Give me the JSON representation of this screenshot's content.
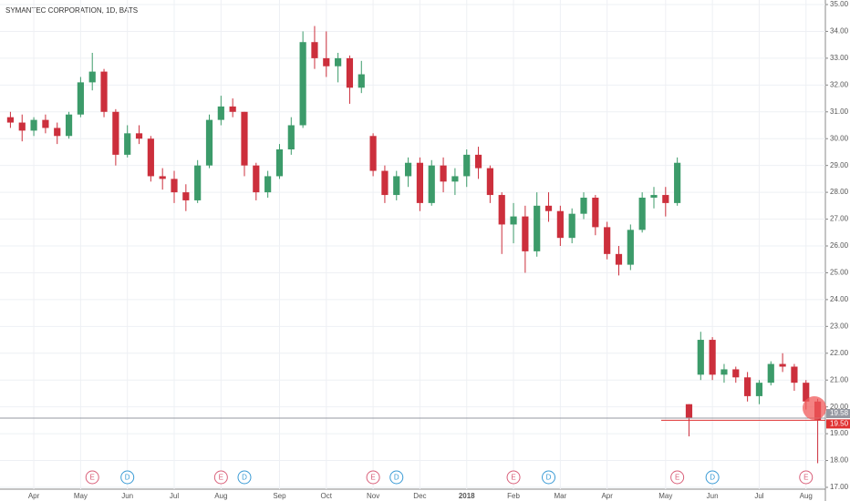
{
  "chart_data": {
    "type": "candlestick",
    "title": "SYMANTEC CORPORATION, 1D, BATS",
    "categories": [
      null,
      null,
      "Apr",
      null,
      null,
      null,
      "May",
      null,
      null,
      null,
      "Jun",
      null,
      null,
      null,
      "Jul",
      null,
      null,
      null,
      "Aug",
      null,
      null,
      null,
      null,
      "Sep",
      null,
      null,
      null,
      "Oct",
      null,
      null,
      null,
      "Nov",
      null,
      null,
      null,
      "Dec",
      null,
      null,
      null,
      "2018",
      null,
      null,
      null,
      "Feb",
      null,
      null,
      null,
      "Mar",
      null,
      null,
      null,
      "Apr",
      null,
      null,
      null,
      null,
      "May",
      null,
      null,
      null,
      "Jun",
      null,
      null,
      null,
      "Jul",
      null,
      null,
      null,
      "Aug",
      null
    ],
    "open": [
      30.8,
      30.6,
      30.3,
      30.7,
      30.4,
      30.1,
      30.9,
      32.1,
      32.5,
      31.0,
      29.4,
      30.2,
      30.0,
      28.6,
      28.5,
      28.0,
      27.7,
      29.0,
      30.7,
      31.2,
      31.0,
      29.0,
      28.0,
      28.6,
      29.6,
      30.5,
      33.6,
      33.0,
      32.7,
      33.0,
      31.9,
      30.1,
      28.8,
      27.9,
      28.6,
      29.1,
      27.6,
      29.0,
      28.4,
      28.6,
      29.4,
      28.9,
      27.9,
      26.8,
      27.1,
      25.8,
      27.5,
      27.3,
      26.3,
      27.2,
      27.8,
      26.7,
      25.7,
      25.3,
      26.6,
      27.8,
      27.9,
      27.6,
      20.1,
      21.2,
      22.5,
      21.2,
      21.4,
      21.1,
      20.4,
      20.9,
      21.6,
      21.5,
      20.9,
      20.2
    ],
    "high": [
      31.0,
      30.9,
      30.8,
      30.9,
      30.6,
      31.0,
      32.3,
      33.2,
      32.6,
      31.1,
      30.5,
      30.5,
      30.1,
      28.9,
      28.8,
      28.3,
      29.2,
      30.9,
      31.6,
      31.5,
      31.0,
      29.1,
      28.8,
      29.8,
      30.8,
      34.0,
      34.2,
      34.0,
      33.2,
      33.1,
      32.9,
      30.2,
      29.0,
      28.8,
      29.3,
      29.3,
      29.2,
      29.3,
      28.9,
      29.6,
      29.7,
      29.0,
      28.0,
      27.6,
      27.5,
      28.0,
      28.0,
      27.5,
      27.4,
      28.0,
      27.9,
      26.9,
      26.0,
      26.8,
      28.0,
      28.2,
      28.2,
      29.3,
      20.1,
      22.8,
      22.6,
      21.6,
      21.5,
      21.3,
      21.0,
      21.7,
      22.0,
      21.6,
      21.0,
      20.3
    ],
    "low": [
      30.4,
      29.9,
      30.1,
      30.2,
      29.8,
      30.0,
      30.8,
      31.8,
      30.8,
      29.0,
      29.3,
      29.8,
      28.4,
      28.1,
      27.6,
      27.3,
      27.6,
      28.9,
      30.5,
      30.8,
      28.6,
      27.7,
      27.8,
      28.5,
      29.4,
      30.4,
      32.6,
      32.3,
      32.1,
      31.3,
      31.7,
      28.6,
      27.6,
      27.7,
      28.2,
      27.3,
      27.5,
      28.0,
      27.9,
      28.2,
      28.5,
      27.6,
      25.7,
      26.1,
      25.0,
      25.6,
      26.9,
      26.0,
      26.1,
      27.0,
      26.4,
      25.5,
      24.9,
      25.1,
      26.5,
      27.4,
      27.1,
      27.5,
      18.9,
      21.0,
      21.0,
      20.9,
      20.9,
      20.2,
      20.1,
      20.8,
      21.3,
      20.6,
      19.9,
      17.9
    ],
    "close": [
      30.6,
      30.3,
      30.7,
      30.4,
      30.1,
      30.9,
      32.1,
      32.5,
      31.0,
      29.4,
      30.2,
      30.0,
      28.6,
      28.5,
      28.0,
      27.7,
      29.0,
      30.7,
      31.2,
      31.0,
      29.0,
      28.0,
      28.6,
      29.6,
      30.5,
      33.6,
      33.0,
      32.7,
      33.0,
      31.9,
      32.4,
      28.8,
      27.9,
      28.6,
      29.1,
      27.6,
      29.0,
      28.4,
      28.6,
      29.4,
      28.9,
      27.9,
      26.8,
      27.1,
      25.8,
      27.5,
      27.3,
      26.3,
      27.2,
      27.8,
      26.7,
      25.7,
      25.3,
      26.6,
      27.8,
      27.9,
      27.6,
      29.1,
      19.6,
      22.5,
      21.2,
      21.4,
      21.1,
      20.4,
      20.9,
      21.6,
      21.5,
      20.9,
      20.2,
      19.5
    ],
    "events": [
      null,
      null,
      null,
      null,
      null,
      null,
      null,
      "E",
      null,
      null,
      "D",
      null,
      null,
      null,
      null,
      null,
      null,
      null,
      "E",
      null,
      "D",
      null,
      null,
      null,
      null,
      null,
      null,
      null,
      null,
      null,
      null,
      "E",
      null,
      "D",
      null,
      null,
      null,
      null,
      null,
      null,
      null,
      null,
      null,
      "E",
      null,
      null,
      "D",
      null,
      null,
      null,
      null,
      null,
      null,
      null,
      null,
      null,
      null,
      "E",
      null,
      null,
      "D",
      null,
      null,
      null,
      null,
      null,
      null,
      null,
      "E",
      null
    ],
    "event_colors": {
      "E": "#d9607a",
      "D": "#3a9bd5"
    },
    "up_color": "#3c9b6a",
    "down_color": "#cc2f3c",
    "price_lines": [
      {
        "value": 19.58,
        "label": "19.58",
        "color": "#9598a1"
      },
      {
        "value": 19.5,
        "label": "19.50",
        "color": "#e03131"
      }
    ],
    "ylim": [
      17,
      35
    ],
    "yticks": [
      {
        "value": 17,
        "label": "17.00"
      },
      {
        "value": 18,
        "label": "18.00"
      },
      {
        "value": 19,
        "label": "19.00"
      },
      {
        "value": 20,
        "label": "20.00"
      },
      {
        "value": 21,
        "label": "21.00"
      },
      {
        "value": 22,
        "label": "22.00"
      },
      {
        "value": 23,
        "label": "23.00"
      },
      {
        "value": 24,
        "label": "24.00"
      },
      {
        "value": 25,
        "label": "25.00"
      },
      {
        "value": 26,
        "label": "26.00"
      },
      {
        "value": 27,
        "label": "27.00"
      },
      {
        "value": 28,
        "label": "28.00"
      },
      {
        "value": 29,
        "label": "29.00"
      },
      {
        "value": 30,
        "label": "30.00"
      },
      {
        "value": 31,
        "label": "31.00"
      },
      {
        "value": 32,
        "label": "32.00"
      },
      {
        "value": 33,
        "label": "33.00"
      },
      {
        "value": 34,
        "label": "34.00"
      },
      {
        "value": 35,
        "label": "35.00"
      }
    ],
    "grid": true
  }
}
